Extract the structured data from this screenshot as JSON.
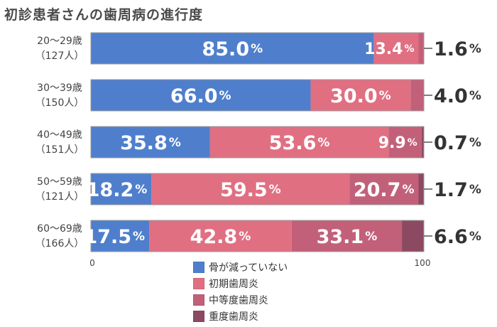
{
  "title": "初診患者さんの歯周病の進行度",
  "chart_data": {
    "type": "bar",
    "orientation": "horizontal",
    "stacked": true,
    "categories": [
      [
        "20～29歳",
        "（127人）"
      ],
      [
        "30～39歳",
        "（150人）"
      ],
      [
        "40～49歳",
        "（151人）"
      ],
      [
        "50～59歳",
        "（121人）"
      ],
      [
        "60～69歳",
        "（166人）"
      ]
    ],
    "series": [
      {
        "name": "骨が減っていない",
        "color": "#4f7fcc",
        "values": [
          85.0,
          66.0,
          35.8,
          18.2,
          17.5
        ]
      },
      {
        "name": "初期歯周炎",
        "color": "#e06f82",
        "values": [
          13.4,
          30.0,
          53.6,
          59.5,
          42.8
        ]
      },
      {
        "name": "中等度歯周炎",
        "color": "#c2607a",
        "values": [
          1.6,
          4.0,
          9.9,
          20.7,
          33.1
        ]
      },
      {
        "name": "重度歯周炎",
        "color": "#8c4a62",
        "values": [
          0.0,
          0.0,
          0.7,
          1.7,
          6.6
        ]
      }
    ],
    "data_labels": [
      [
        {
          "text": "85.0",
          "series": 0
        },
        {
          "text": "13.4",
          "series": 1
        },
        {
          "text": "1.6",
          "outside": true
        }
      ],
      [
        {
          "text": "66.0",
          "series": 0
        },
        {
          "text": "30.0",
          "series": 1
        },
        {
          "text": "4.0",
          "outside": true
        }
      ],
      [
        {
          "text": "35.8",
          "series": 0
        },
        {
          "text": "53.6",
          "series": 1
        },
        {
          "text": "9.9",
          "series": 2
        },
        {
          "text": "0.7",
          "outside": true
        }
      ],
      [
        {
          "text": "18.2",
          "series": 0
        },
        {
          "text": "59.5",
          "series": 1
        },
        {
          "text": "20.7",
          "series": 2
        },
        {
          "text": "1.7",
          "outside": true
        }
      ],
      [
        {
          "text": "17.5",
          "series": 0
        },
        {
          "text": "42.8",
          "series": 1
        },
        {
          "text": "33.1",
          "series": 2
        },
        {
          "text": "6.6",
          "outside": true
        }
      ]
    ],
    "percent_suffix": "%",
    "xlim": [
      0,
      100
    ],
    "x_tick_labels": [
      "0",
      "100"
    ],
    "legend_position": "bottom-center",
    "grid": false
  }
}
